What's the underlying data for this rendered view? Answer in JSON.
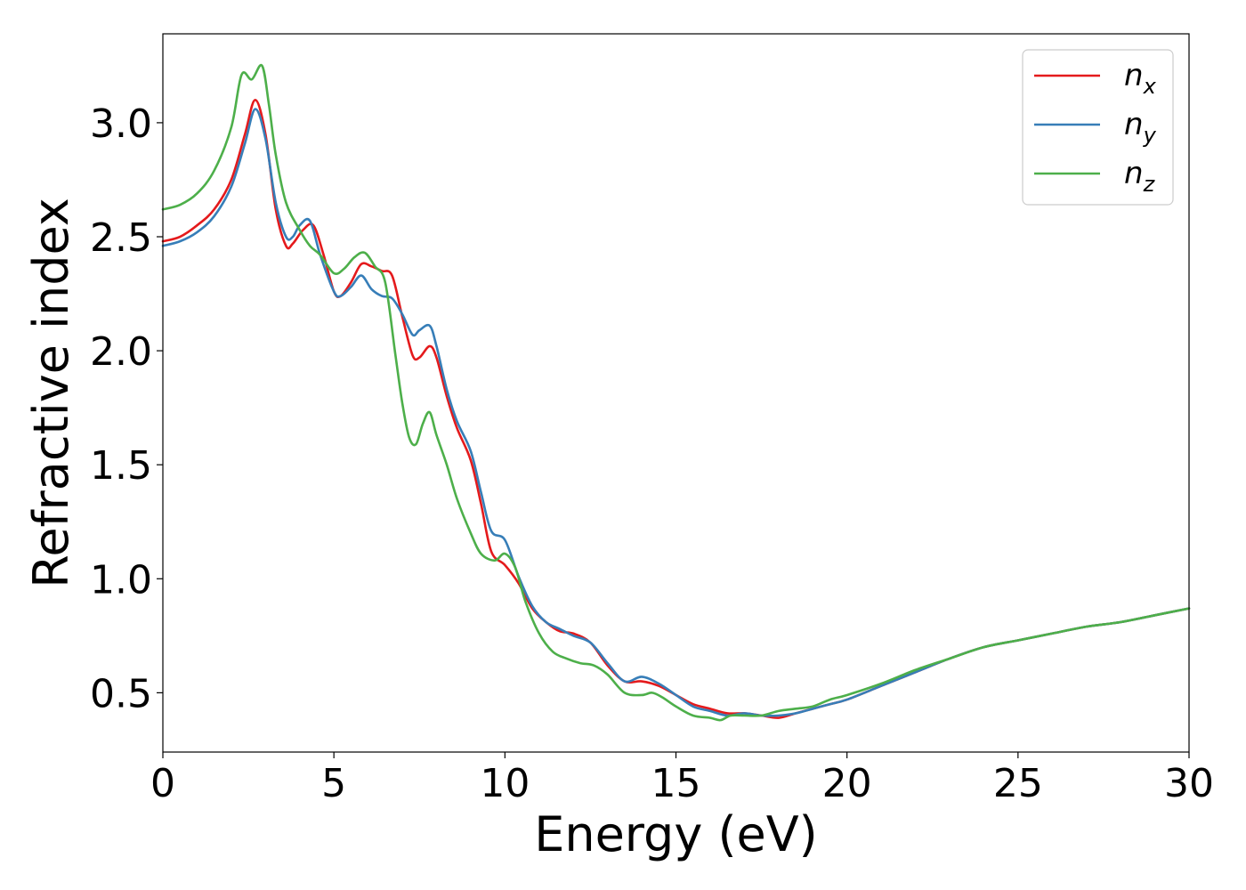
{
  "chart_data": {
    "type": "line",
    "xlabel": "Energy (eV)",
    "ylabel": "Refractive index",
    "xlim": [
      0,
      30
    ],
    "ylim": [
      0.24,
      3.39
    ],
    "xticks": [
      0,
      5,
      10,
      15,
      20,
      25,
      30
    ],
    "xtick_labels": [
      "0",
      "5",
      "10",
      "15",
      "20",
      "25",
      "30"
    ],
    "yticks": [
      0.5,
      1.0,
      1.5,
      2.0,
      2.5,
      3.0
    ],
    "ytick_labels": [
      "0.5",
      "1.0",
      "1.5",
      "2.0",
      "2.5",
      "3.0"
    ],
    "grid": false,
    "legend_position": "top-right",
    "series": [
      {
        "name": "n_x",
        "label_base": "n",
        "label_sub": "x",
        "color": "#e41a1c",
        "x": [
          0,
          0.5,
          1.0,
          1.5,
          2.0,
          2.4,
          2.7,
          3.0,
          3.3,
          3.6,
          3.8,
          4.1,
          4.4,
          4.7,
          5.0,
          5.2,
          5.5,
          5.8,
          6.1,
          6.4,
          6.7,
          7.0,
          7.3,
          7.5,
          7.8,
          8.0,
          8.3,
          8.6,
          9.0,
          9.3,
          9.6,
          10.0,
          10.4,
          10.8,
          11.2,
          11.6,
          12.0,
          12.5,
          13.0,
          13.5,
          14.0,
          14.5,
          15.0,
          15.5,
          16.0,
          16.5,
          17.0,
          17.5,
          18.0,
          18.5,
          19.0,
          19.5,
          20.0,
          21.0,
          22.0,
          23.0,
          24.0,
          25.0,
          26.0,
          27.0,
          28.0,
          29.0,
          30.0
        ],
        "values": [
          2.48,
          2.5,
          2.55,
          2.62,
          2.75,
          2.95,
          3.1,
          2.95,
          2.62,
          2.46,
          2.47,
          2.53,
          2.55,
          2.42,
          2.26,
          2.24,
          2.3,
          2.38,
          2.37,
          2.35,
          2.33,
          2.15,
          1.98,
          1.97,
          2.02,
          1.97,
          1.8,
          1.66,
          1.52,
          1.33,
          1.12,
          1.06,
          0.98,
          0.87,
          0.81,
          0.77,
          0.76,
          0.72,
          0.62,
          0.55,
          0.55,
          0.53,
          0.49,
          0.45,
          0.43,
          0.41,
          0.41,
          0.4,
          0.39,
          0.41,
          0.43,
          0.45,
          0.47,
          0.53,
          0.59,
          0.65,
          0.7,
          0.73,
          0.76,
          0.79,
          0.81,
          0.84,
          0.87
        ]
      },
      {
        "name": "n_y",
        "label_base": "n",
        "label_sub": "y",
        "color": "#377eb8",
        "x": [
          0,
          0.5,
          1.0,
          1.5,
          2.0,
          2.4,
          2.7,
          3.0,
          3.3,
          3.6,
          3.8,
          4.0,
          4.3,
          4.6,
          5.0,
          5.2,
          5.5,
          5.8,
          6.1,
          6.4,
          6.7,
          7.0,
          7.3,
          7.5,
          7.8,
          8.0,
          8.3,
          8.6,
          9.0,
          9.3,
          9.6,
          10.0,
          10.4,
          10.8,
          11.2,
          11.6,
          12.0,
          12.5,
          13.0,
          13.5,
          14.0,
          14.5,
          15.0,
          15.5,
          16.0,
          16.5,
          17.0,
          17.5,
          18.0,
          18.5,
          19.0,
          19.5,
          20.0,
          21.0,
          22.0,
          23.0,
          24.0,
          25.0,
          26.0,
          27.0,
          28.0,
          29.0,
          30.0
        ],
        "values": [
          2.46,
          2.48,
          2.52,
          2.59,
          2.72,
          2.91,
          3.06,
          2.93,
          2.65,
          2.5,
          2.5,
          2.55,
          2.57,
          2.42,
          2.26,
          2.24,
          2.28,
          2.33,
          2.27,
          2.24,
          2.23,
          2.16,
          2.07,
          2.09,
          2.11,
          2.02,
          1.83,
          1.69,
          1.56,
          1.38,
          1.21,
          1.17,
          1.01,
          0.88,
          0.81,
          0.78,
          0.75,
          0.72,
          0.63,
          0.55,
          0.57,
          0.54,
          0.49,
          0.44,
          0.42,
          0.4,
          0.41,
          0.4,
          0.4,
          0.41,
          0.43,
          0.45,
          0.47,
          0.53,
          0.59,
          0.65,
          0.7,
          0.73,
          0.76,
          0.79,
          0.81,
          0.84,
          0.87
        ]
      },
      {
        "name": "n_z",
        "label_base": "n",
        "label_sub": "z",
        "color": "#4daf4a",
        "x": [
          0,
          0.5,
          1.0,
          1.5,
          2.0,
          2.3,
          2.6,
          2.9,
          3.1,
          3.3,
          3.6,
          4.0,
          4.3,
          4.6,
          5.0,
          5.3,
          5.6,
          5.9,
          6.2,
          6.5,
          6.8,
          7.0,
          7.2,
          7.4,
          7.6,
          7.8,
          8.0,
          8.3,
          8.6,
          9.0,
          9.3,
          9.7,
          10.0,
          10.3,
          10.6,
          11.0,
          11.4,
          11.8,
          12.2,
          12.6,
          13.0,
          13.5,
          14.0,
          14.3,
          14.6,
          15.0,
          15.5,
          16.0,
          16.3,
          16.6,
          17.0,
          17.5,
          18.0,
          18.5,
          19.0,
          19.5,
          20.0,
          21.0,
          22.0,
          23.0,
          24.0,
          25.0,
          26.0,
          27.0,
          28.0,
          29.0,
          30.0
        ],
        "values": [
          2.62,
          2.64,
          2.69,
          2.79,
          2.98,
          3.21,
          3.19,
          3.25,
          3.08,
          2.86,
          2.65,
          2.53,
          2.46,
          2.42,
          2.34,
          2.36,
          2.41,
          2.43,
          2.37,
          2.3,
          1.98,
          1.77,
          1.62,
          1.59,
          1.68,
          1.73,
          1.63,
          1.5,
          1.35,
          1.2,
          1.11,
          1.08,
          1.11,
          1.05,
          0.9,
          0.76,
          0.68,
          0.65,
          0.63,
          0.62,
          0.58,
          0.5,
          0.49,
          0.5,
          0.48,
          0.44,
          0.4,
          0.39,
          0.38,
          0.4,
          0.4,
          0.4,
          0.42,
          0.43,
          0.44,
          0.47,
          0.49,
          0.54,
          0.6,
          0.65,
          0.7,
          0.73,
          0.76,
          0.79,
          0.81,
          0.84,
          0.87
        ]
      }
    ]
  }
}
